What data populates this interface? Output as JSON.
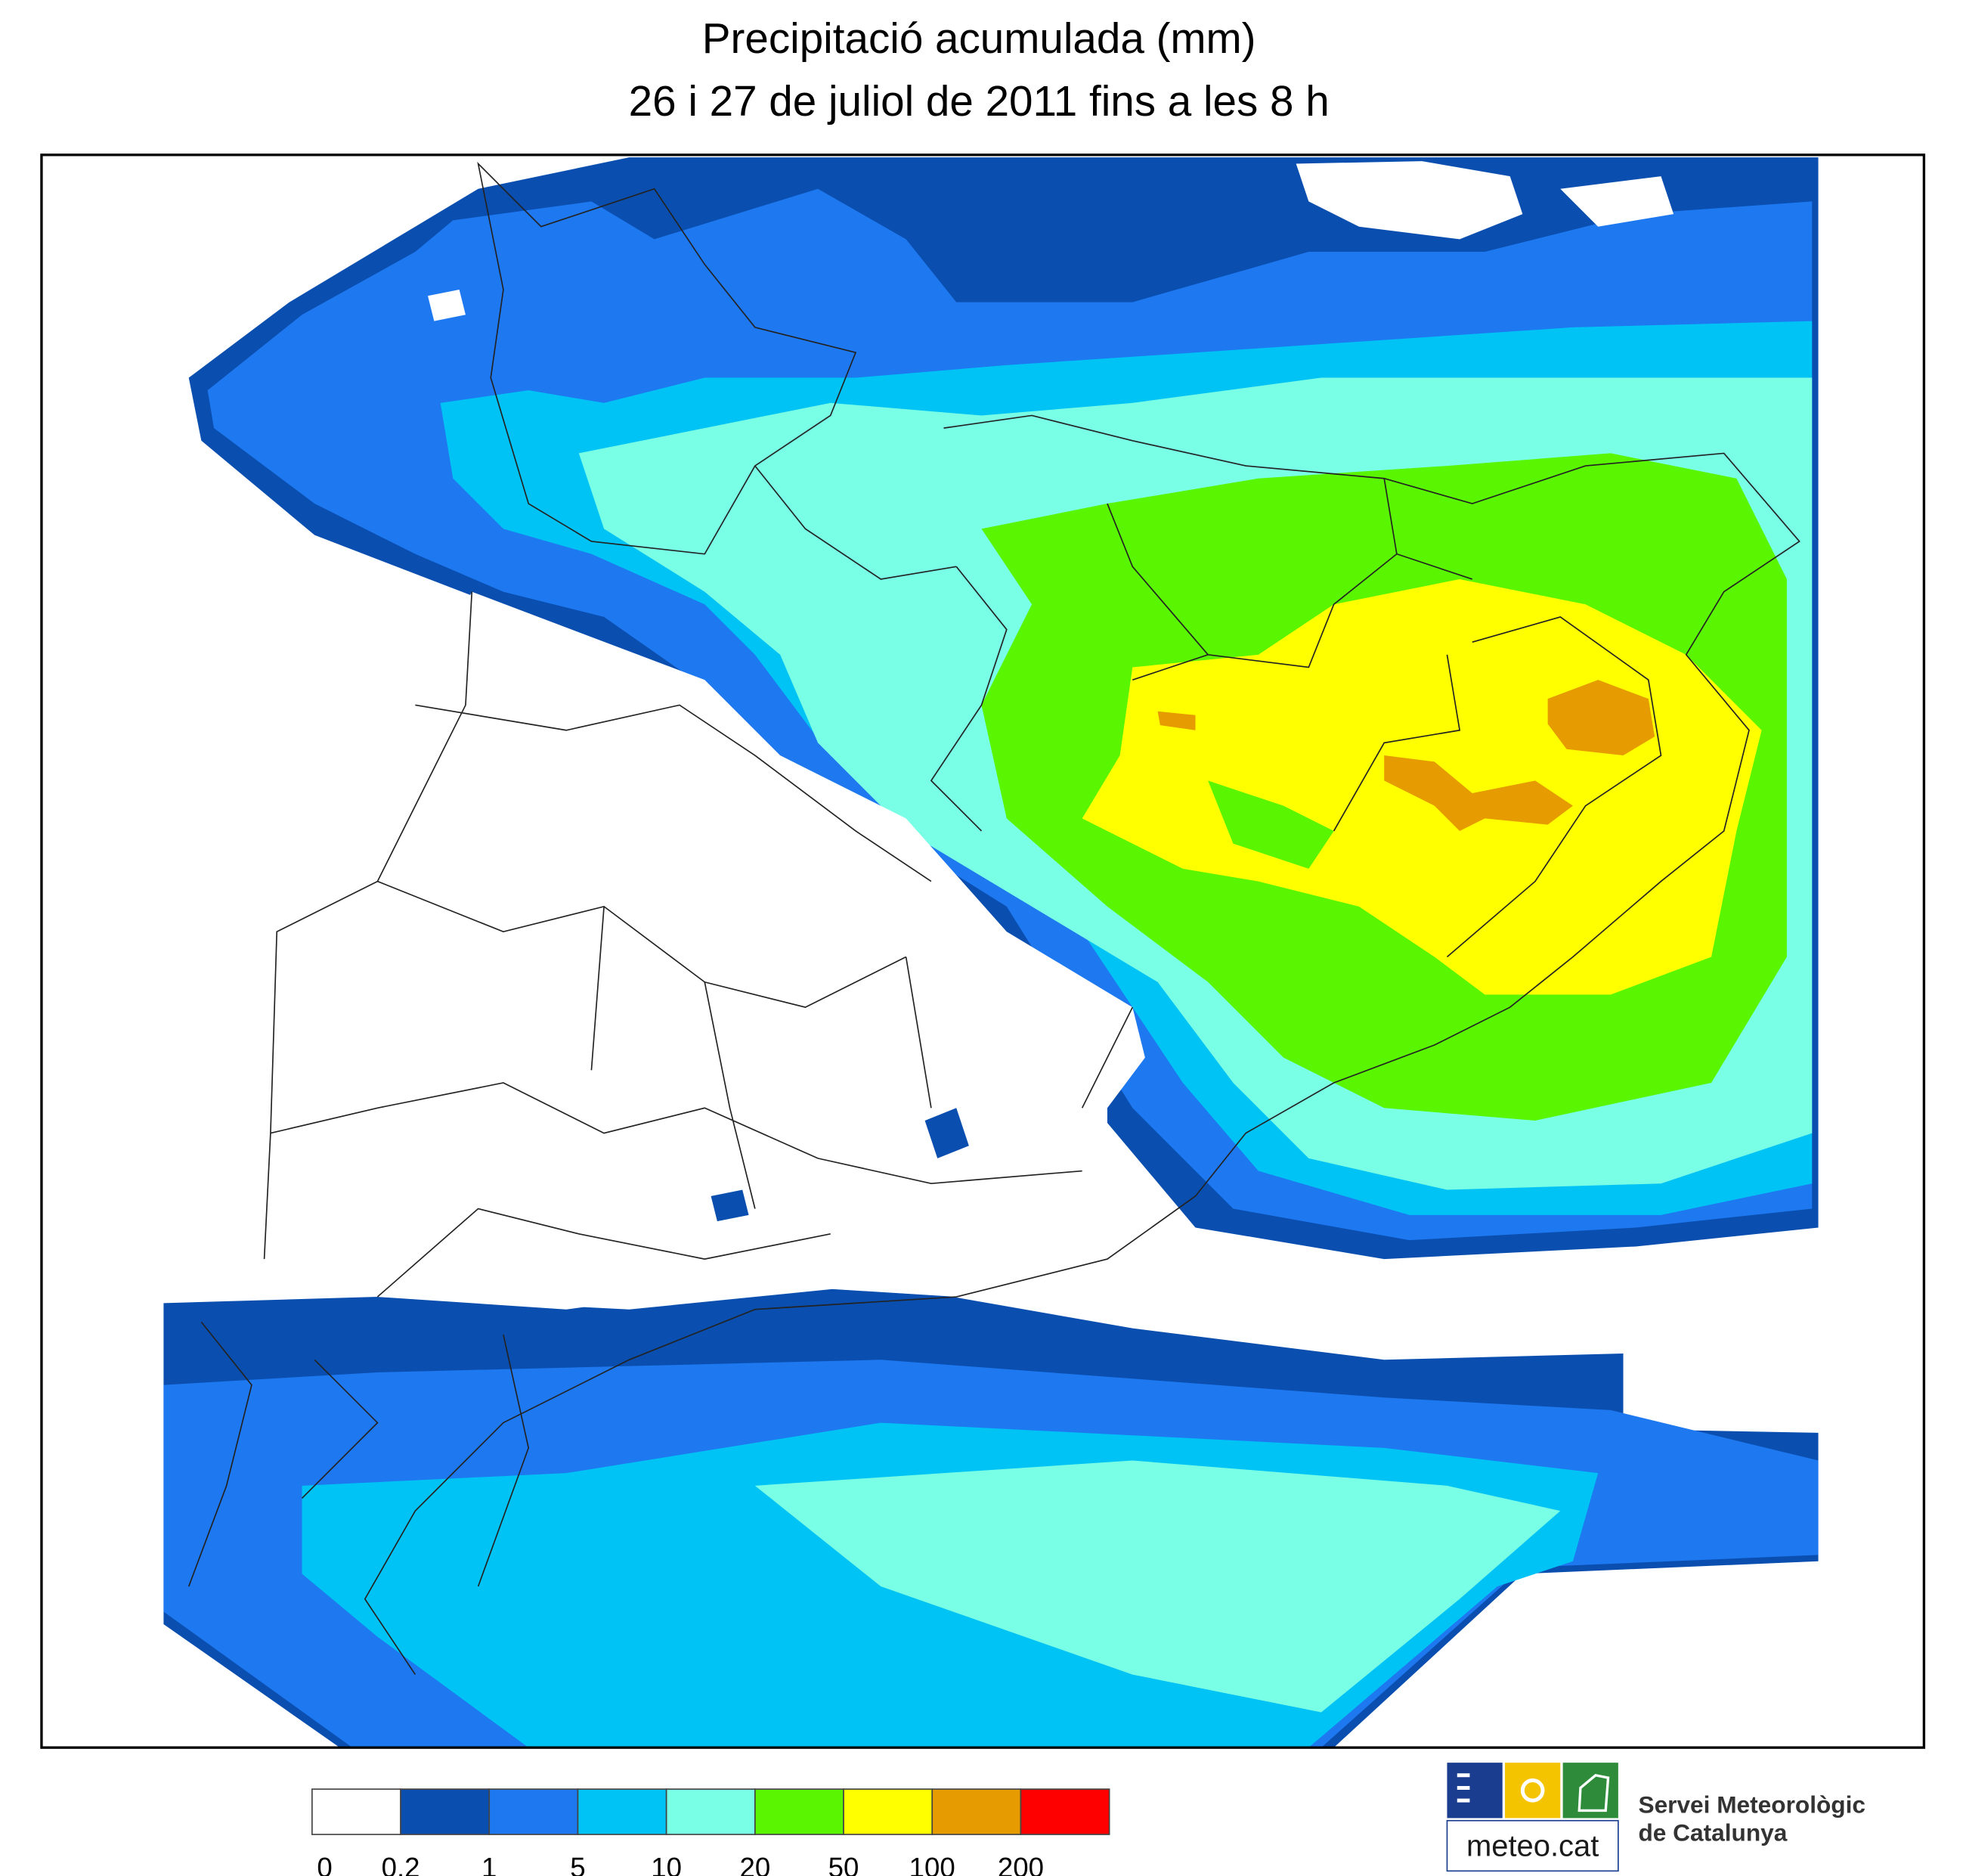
{
  "header": {
    "title": "Precipitació acumulada (mm)",
    "subtitle": "26 i 27 de juliol de 2011 fins a les 8 h"
  },
  "legend": {
    "items": [
      {
        "label": "0",
        "color": "#ffffff"
      },
      {
        "label": "0.2",
        "color": "#0a4fb0"
      },
      {
        "label": "1",
        "color": "#1e78f0"
      },
      {
        "label": "5",
        "color": "#00c3f5"
      },
      {
        "label": "10",
        "color": "#78ffe6"
      },
      {
        "label": "20",
        "color": "#5af500"
      },
      {
        "label": "50",
        "color": "#ffff00"
      },
      {
        "label": "100",
        "color": "#e69b00"
      },
      {
        "label": "200",
        "color": "#ff0000"
      }
    ]
  },
  "logo": {
    "site": "meteo.cat",
    "org_line1": "Servei Meteorològic",
    "org_line2": "de Catalunya"
  }
}
